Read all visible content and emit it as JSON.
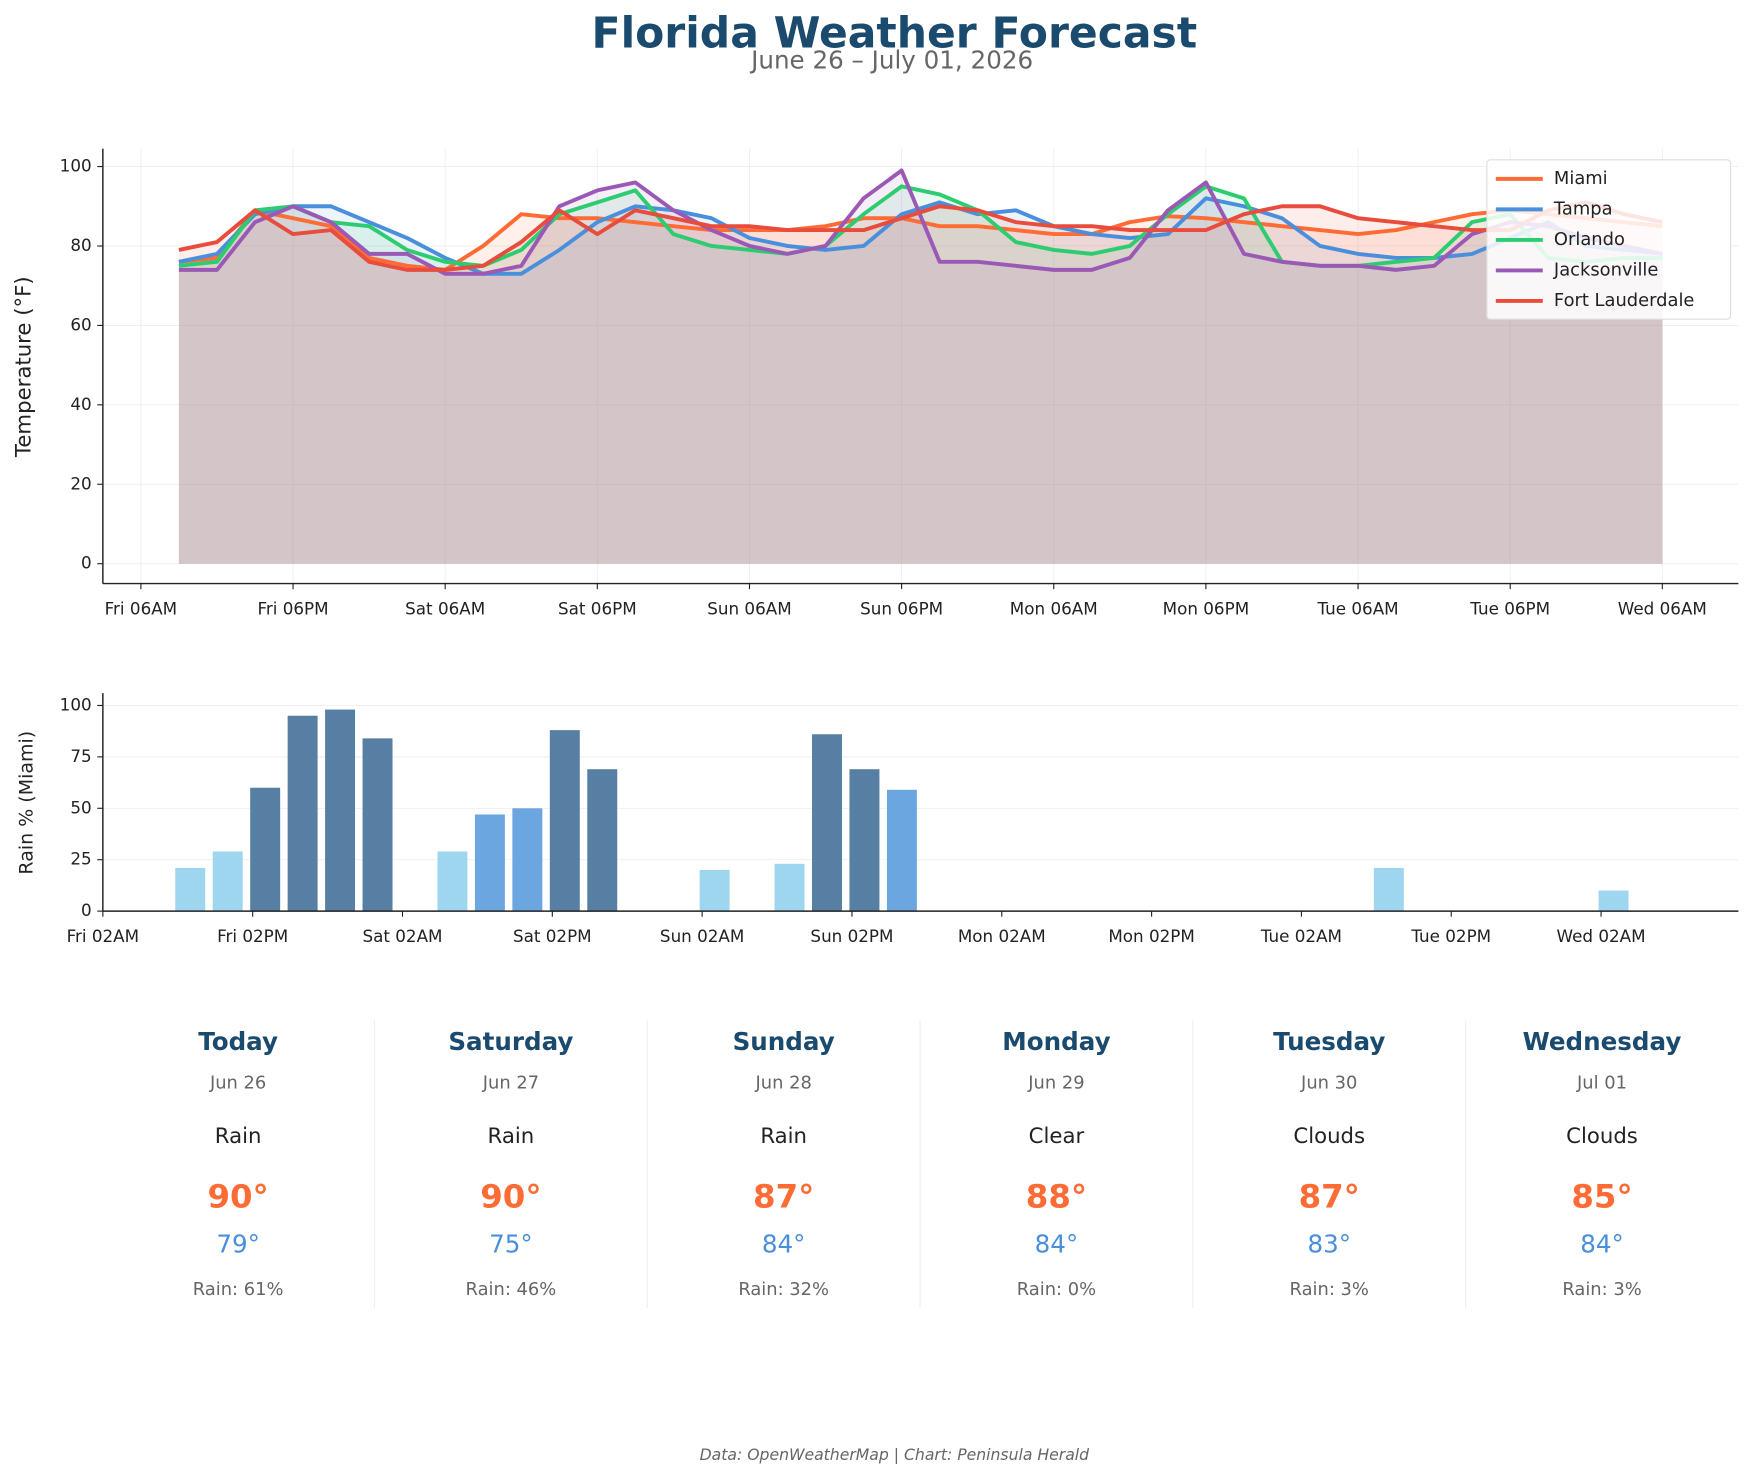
{
  "chart_data": [
    {
      "type": "line",
      "title": "Florida Weather Forecast",
      "subtitle": "June 26 – July 01, 2026",
      "y_label": "Temperature (°F)",
      "x": [
        "Fri 09AM",
        "Fri 12PM",
        "Fri 03PM",
        "Fri 06PM",
        "Fri 09PM",
        "Sat 12AM",
        "Sat 03AM",
        "Sat 06AM",
        "Sat 09AM",
        "Sat 12PM",
        "Sat 03PM",
        "Sat 06PM",
        "Sat 09PM",
        "Sun 12AM",
        "Sun 03AM",
        "Sun 06AM",
        "Sun 09AM",
        "Sun 12PM",
        "Sun 03PM",
        "Sun 06PM",
        "Sun 09PM",
        "Mon 12AM",
        "Mon 03AM",
        "Mon 06AM",
        "Mon 09AM",
        "Mon 12PM",
        "Mon 03PM",
        "Mon 06PM",
        "Mon 09PM",
        "Tue 12AM",
        "Tue 03AM",
        "Tue 06AM",
        "Tue 09AM",
        "Tue 12PM",
        "Tue 03PM",
        "Tue 06PM",
        "Tue 09PM",
        "Wed 12AM",
        "Wed 03AM",
        "Wed 06AM"
      ],
      "series": [
        {
          "name": "Miami",
          "color": "#ff6b35",
          "values": [
            76,
            77,
            89,
            87,
            85,
            77,
            75,
            74,
            80,
            88,
            87,
            87,
            86,
            85,
            84,
            84,
            84,
            85,
            87,
            87,
            85,
            85,
            84,
            83,
            83,
            86,
            87.5,
            87,
            86,
            85,
            84,
            83,
            84,
            86,
            88,
            89,
            88,
            87,
            86,
            85
          ]
        },
        {
          "name": "Tampa",
          "color": "#4a8fdb",
          "values": [
            76,
            78,
            88,
            90,
            90,
            86,
            82,
            77,
            73,
            73,
            79,
            86,
            90,
            89,
            87,
            82,
            80,
            79,
            80,
            88,
            91,
            88,
            89,
            85,
            83,
            82,
            83,
            92,
            90,
            87,
            80,
            78,
            77,
            77,
            78,
            82,
            86,
            80,
            79,
            78
          ]
        },
        {
          "name": "Orlando",
          "color": "#2ecc71",
          "values": [
            75,
            76,
            89,
            90,
            86,
            85,
            79,
            76,
            75,
            79,
            88,
            91,
            94,
            83,
            80,
            79,
            78,
            80,
            88,
            95,
            93,
            89,
            81,
            79,
            78,
            80,
            88,
            95,
            92,
            76,
            75,
            75,
            76,
            77,
            86,
            88,
            77,
            76,
            77,
            77
          ]
        },
        {
          "name": "Jacksonville",
          "color": "#9b59b6",
          "values": [
            74,
            74,
            86,
            90,
            86,
            78,
            78,
            73,
            73,
            75,
            90,
            94,
            96,
            89,
            84,
            80,
            78,
            80,
            92,
            99,
            76,
            76,
            75,
            74,
            74,
            77,
            89,
            96,
            78,
            76,
            75,
            75,
            74,
            75,
            83,
            86,
            85,
            82,
            80,
            78
          ]
        },
        {
          "name": "Fort Lauderdale",
          "color": "#e74c3c",
          "values": [
            79,
            81,
            89,
            83,
            84,
            76,
            74,
            74,
            75,
            81,
            89,
            83,
            89,
            87,
            85,
            85,
            84,
            84,
            84,
            87,
            90,
            89,
            86,
            85,
            85,
            84,
            84,
            84,
            88,
            90,
            90,
            87,
            86,
            85,
            84,
            84,
            89,
            91,
            88,
            86
          ]
        }
      ],
      "xlim": [
        "Fri 03AM",
        "Wed 12PM"
      ],
      "xticks": [
        "Fri 06AM",
        "Fri 06PM",
        "Sat 06AM",
        "Sat 06PM",
        "Sun 06AM",
        "Sun 06PM",
        "Mon 06AM",
        "Mon 06PM",
        "Tue 06AM",
        "Tue 06PM",
        "Wed 06AM"
      ],
      "ylim": [
        -5,
        104.5
      ],
      "yticks": [
        0,
        20,
        40,
        60,
        80,
        100
      ],
      "grid": true,
      "legend": "upper right",
      "fill": true
    },
    {
      "type": "bar",
      "y_label": "Rain % (Miami)",
      "x": [
        "Fri 09AM",
        "Fri 12PM",
        "Fri 03PM",
        "Fri 06PM",
        "Fri 09PM",
        "Sat 12AM",
        "Sat 03AM",
        "Sat 06AM",
        "Sat 09AM",
        "Sat 12PM",
        "Sat 03PM",
        "Sat 06PM",
        "Sat 09PM",
        "Sun 12AM",
        "Sun 03AM",
        "Sun 06AM",
        "Sun 09AM",
        "Sun 12PM",
        "Sun 03PM",
        "Sun 06PM",
        "Sun 09PM",
        "Mon 12AM",
        "Mon 03AM",
        "Mon 06AM",
        "Mon 09AM",
        "Mon 12PM",
        "Mon 03PM",
        "Mon 06PM",
        "Mon 09PM",
        "Tue 12AM",
        "Tue 03AM",
        "Tue 06AM",
        "Tue 09AM",
        "Tue 12PM",
        "Tue 03PM",
        "Tue 06PM",
        "Tue 09PM",
        "Wed 12AM",
        "Wed 03AM",
        "Wed 06AM"
      ],
      "values": [
        21,
        29,
        60,
        95,
        98,
        84,
        0,
        29,
        47,
        50,
        88,
        69,
        0,
        0,
        20,
        0,
        23,
        86,
        69,
        59,
        0,
        0,
        0,
        0,
        0,
        0,
        0,
        0,
        0,
        0,
        0,
        0,
        21,
        0,
        0,
        0,
        0,
        0,
        10,
        0
      ],
      "colors": [
        "#9dd6ee",
        "#9dd6ee",
        "#567fa3",
        "#567fa3",
        "#567fa3",
        "#567fa3",
        "#9dd6ee",
        "#9dd6ee",
        "#6ca6e0",
        "#6ca6e0",
        "#567fa3",
        "#567fa3",
        "#9dd6ee",
        "#9dd6ee",
        "#9dd6ee",
        "#9dd6ee",
        "#9dd6ee",
        "#567fa3",
        "#567fa3",
        "#6ca6e0",
        "#9dd6ee",
        "#9dd6ee",
        "#9dd6ee",
        "#9dd6ee",
        "#9dd6ee",
        "#9dd6ee",
        "#9dd6ee",
        "#9dd6ee",
        "#9dd6ee",
        "#9dd6ee",
        "#9dd6ee",
        "#9dd6ee",
        "#9dd6ee",
        "#9dd6ee",
        "#9dd6ee",
        "#9dd6ee",
        "#9dd6ee",
        "#9dd6ee",
        "#9dd6ee",
        "#9dd6ee"
      ],
      "xlim": [
        "Fri 02AM",
        "Wed 01PM"
      ],
      "xticks": [
        "Fri 02AM",
        "Fri 02PM",
        "Sat 02AM",
        "Sat 02PM",
        "Sun 02AM",
        "Sun 02PM",
        "Mon 02AM",
        "Mon 02PM",
        "Tue 02AM",
        "Tue 02PM",
        "Wed 02AM"
      ],
      "ylim": [
        0,
        106
      ],
      "yticks": [
        0,
        25,
        50,
        75,
        100
      ],
      "grid": true
    }
  ],
  "forecast": {
    "days": [
      {
        "name": "Today",
        "date": "Jun 26",
        "condition": "Rain",
        "high": "90°",
        "low": "79°",
        "rain": "Rain: 61%"
      },
      {
        "name": "Saturday",
        "date": "Jun 27",
        "condition": "Rain",
        "high": "90°",
        "low": "75°",
        "rain": "Rain: 46%"
      },
      {
        "name": "Sunday",
        "date": "Jun 28",
        "condition": "Rain",
        "high": "87°",
        "low": "84°",
        "rain": "Rain: 32%"
      },
      {
        "name": "Monday",
        "date": "Jun 29",
        "condition": "Clear",
        "high": "88°",
        "low": "84°",
        "rain": "Rain: 0%"
      },
      {
        "name": "Tuesday",
        "date": "Jun 30",
        "condition": "Clouds",
        "high": "87°",
        "low": "83°",
        "rain": "Rain: 3%"
      },
      {
        "name": "Wednesday",
        "date": "Jul 01",
        "condition": "Clouds",
        "high": "85°",
        "low": "84°",
        "rain": "Rain: 3%"
      }
    ]
  },
  "footer": "Data: OpenWeatherMap | Chart: Peninsula Herald"
}
